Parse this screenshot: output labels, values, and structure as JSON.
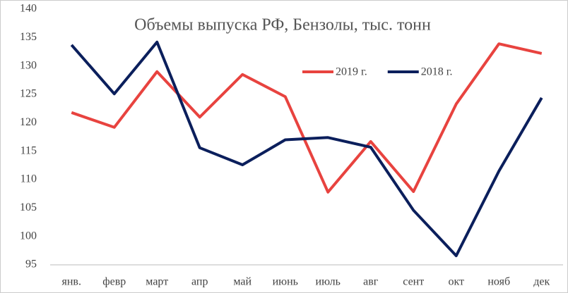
{
  "chart_data": {
    "type": "line",
    "title": "Объемы выпуска РФ, Бензолы, тыс. тонн",
    "categories": [
      "янв.",
      "февр",
      "март",
      "апр",
      "май",
      "июнь",
      "июль",
      "авг",
      "сент",
      "окт",
      "нояб",
      "дек"
    ],
    "series": [
      {
        "name": "2019 г.",
        "color": "#e8433f",
        "values": [
          121.8,
          119.2,
          129,
          121,
          128.5,
          124.6,
          107.8,
          116.7,
          107.9,
          123.3,
          133.9,
          132.2
        ]
      },
      {
        "name": "2018 г.",
        "color": "#0b1f5c",
        "values": [
          133.7,
          125.1,
          134.2,
          115.6,
          112.6,
          117,
          117.4,
          115.7,
          104.6,
          96.6,
          111.5,
          124.4
        ]
      }
    ],
    "ylim": [
      95,
      140
    ],
    "yticks": [
      95,
      100,
      105,
      110,
      115,
      120,
      125,
      130,
      135,
      140
    ],
    "grid": false,
    "legend": "top"
  }
}
